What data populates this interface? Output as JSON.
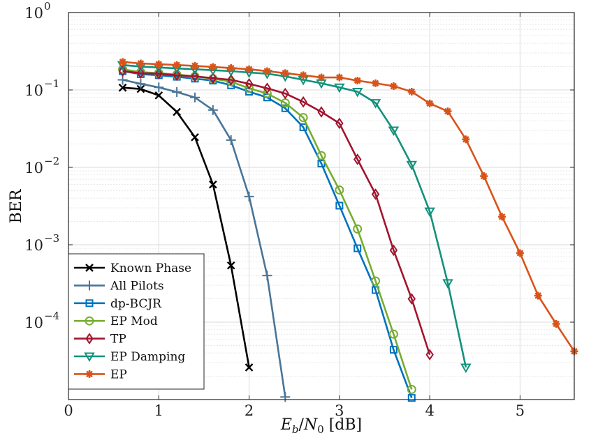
{
  "chart_data": {
    "type": "line",
    "yscale": "log",
    "xlabel": "E_b/N_0 [dB]",
    "ylabel": "BER",
    "xlim": [
      0,
      5.6
    ],
    "ylim": [
      1e-05,
      1
    ],
    "grid": true,
    "legend_position": "bottom-left",
    "xticks": [
      {
        "value": 0,
        "label": "0"
      },
      {
        "value": 1,
        "label": "1"
      },
      {
        "value": 2,
        "label": "2"
      },
      {
        "value": 3,
        "label": "3"
      },
      {
        "value": 4,
        "label": "4"
      },
      {
        "value": 5,
        "label": "5"
      }
    ],
    "yticks": [
      {
        "value": 1,
        "base": "10",
        "exp": "0"
      },
      {
        "value": 0.1,
        "base": "10",
        "exp": "−1"
      },
      {
        "value": 0.01,
        "base": "10",
        "exp": "−2"
      },
      {
        "value": 0.001,
        "base": "10",
        "exp": "−3"
      },
      {
        "value": 0.0001,
        "base": "10",
        "exp": "−4"
      }
    ],
    "xlabel_parts": {
      "e": "E",
      "b": "b",
      "slash": "/",
      "n": "N",
      "zero": "0",
      "unit": " [dB]"
    },
    "series": [
      {
        "name": "Known Phase",
        "color": "#000000",
        "marker": "x",
        "x": [
          0.6,
          0.8,
          1.0,
          1.2,
          1.4,
          1.6,
          1.8,
          2.0
        ],
        "y": [
          0.107,
          0.103,
          0.085,
          0.052,
          0.0245,
          0.006,
          0.00054,
          2.6e-05
        ]
      },
      {
        "name": "All Pilots",
        "color": "#4a7596",
        "marker": "plus",
        "x": [
          0.6,
          0.8,
          1.0,
          1.2,
          1.4,
          1.6,
          1.8,
          2.0,
          2.2,
          2.4
        ],
        "y": [
          0.135,
          0.12,
          0.108,
          0.094,
          0.08,
          0.055,
          0.0225,
          0.0042,
          0.0004,
          1.08e-05
        ]
      },
      {
        "name": "dp-BCJR",
        "color": "#0072bd",
        "marker": "square",
        "x": [
          0.6,
          0.8,
          1.0,
          1.2,
          1.4,
          1.6,
          1.8,
          2.0,
          2.2,
          2.4,
          2.6,
          2.8,
          3.0,
          3.2,
          3.4,
          3.6,
          3.8
        ],
        "y": [
          0.175,
          0.16,
          0.155,
          0.148,
          0.14,
          0.132,
          0.115,
          0.095,
          0.08,
          0.058,
          0.033,
          0.0112,
          0.0032,
          0.0009,
          0.00026,
          4.4e-05,
          1.05e-05
        ]
      },
      {
        "name": "EP Mod",
        "color": "#77ac30",
        "marker": "circle",
        "x": [
          0.6,
          0.8,
          1.0,
          1.2,
          1.4,
          1.6,
          1.8,
          2.0,
          2.2,
          2.4,
          2.6,
          2.8,
          3.0,
          3.2,
          3.4,
          3.6,
          3.8
        ],
        "y": [
          0.185,
          0.17,
          0.165,
          0.158,
          0.15,
          0.14,
          0.128,
          0.105,
          0.09,
          0.068,
          0.044,
          0.0142,
          0.0051,
          0.0016,
          0.00034,
          7e-05,
          1.35e-05
        ]
      },
      {
        "name": "TP",
        "color": "#a2142f",
        "marker": "diamond",
        "x": [
          0.6,
          0.8,
          1.0,
          1.2,
          1.4,
          1.6,
          1.8,
          2.0,
          2.2,
          2.4,
          2.6,
          2.8,
          3.0,
          3.2,
          3.4,
          3.6,
          3.8,
          4.0
        ],
        "y": [
          0.175,
          0.165,
          0.162,
          0.155,
          0.15,
          0.142,
          0.135,
          0.12,
          0.105,
          0.09,
          0.07,
          0.052,
          0.037,
          0.0127,
          0.0045,
          0.00085,
          0.0002,
          3.8e-05
        ]
      },
      {
        "name": "EP Damping",
        "color": "#13917b",
        "marker": "triangle-down",
        "x": [
          0.6,
          0.8,
          1.0,
          1.2,
          1.4,
          1.6,
          1.8,
          2.0,
          2.2,
          2.4,
          2.6,
          2.8,
          3.0,
          3.2,
          3.4,
          3.6,
          3.8,
          4.0,
          4.2,
          4.4
        ],
        "y": [
          0.21,
          0.2,
          0.195,
          0.19,
          0.185,
          0.18,
          0.175,
          0.168,
          0.162,
          0.15,
          0.135,
          0.122,
          0.108,
          0.095,
          0.068,
          0.03,
          0.0108,
          0.0027,
          0.00032,
          2.6e-05
        ]
      },
      {
        "name": "EP",
        "color": "#d95319",
        "marker": "asterisk",
        "x": [
          0.6,
          0.8,
          1.0,
          1.2,
          1.4,
          1.6,
          1.8,
          2.0,
          2.2,
          2.4,
          2.6,
          2.8,
          3.0,
          3.2,
          3.4,
          3.6,
          3.8,
          4.0,
          4.2,
          4.4,
          4.6,
          4.8,
          5.0,
          5.2,
          5.4,
          5.6
        ],
        "y": [
          0.23,
          0.22,
          0.215,
          0.21,
          0.205,
          0.198,
          0.192,
          0.185,
          0.175,
          0.165,
          0.155,
          0.145,
          0.145,
          0.132,
          0.122,
          0.112,
          0.095,
          0.067,
          0.053,
          0.023,
          0.0077,
          0.0023,
          0.00078,
          0.00022,
          9.5e-05,
          4.2e-05
        ]
      }
    ]
  }
}
